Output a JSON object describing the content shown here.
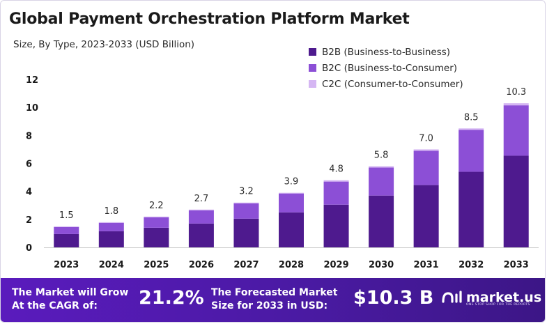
{
  "title": "Global Payment Orchestration Platform Market",
  "subtitle": "Size, By Type, 2023-2033 (USD Billion)",
  "colors": {
    "b2b": "#4e1a8e",
    "b2c": "#8c4fd6",
    "c2c": "#d5b6f3",
    "footer": "#4a1aa3"
  },
  "chart_data": {
    "type": "bar",
    "stacked": true,
    "title": "Global Payment Orchestration Platform Market",
    "subtitle": "Size, By Type, 2023-2033 (USD Billion)",
    "categories": [
      "2023",
      "2024",
      "2025",
      "2026",
      "2027",
      "2028",
      "2029",
      "2030",
      "2031",
      "2032",
      "2033"
    ],
    "series": [
      {
        "name": "B2B (Business-to-Business)",
        "values": [
          0.95,
          1.15,
          1.4,
          1.7,
          2.05,
          2.5,
          3.05,
          3.7,
          4.45,
          5.4,
          6.55
        ]
      },
      {
        "name": "B2C (Business-to-Consumer)",
        "values": [
          0.5,
          0.6,
          0.75,
          0.95,
          1.1,
          1.35,
          1.65,
          2.0,
          2.45,
          3.0,
          3.6
        ]
      },
      {
        "name": "C2C (Consumer-to-Consumer)",
        "values": [
          0.05,
          0.05,
          0.05,
          0.05,
          0.05,
          0.05,
          0.1,
          0.1,
          0.1,
          0.1,
          0.15
        ]
      }
    ],
    "totals": [
      "1.5",
      "1.8",
      "2.2",
      "2.7",
      "3.2",
      "3.9",
      "4.8",
      "5.8",
      "7.0",
      "8.5",
      "10.3"
    ],
    "yticks": [
      "0",
      "2",
      "4",
      "6",
      "8",
      "10",
      "12"
    ],
    "ylim": [
      0,
      12
    ],
    "xlabel": "",
    "ylabel": "",
    "legend_position": "top-right"
  },
  "footer": {
    "cagr_label_line1": "The Market will Grow",
    "cagr_label_line2": "At the CAGR of:",
    "cagr_value": "21.2%",
    "forecast_label_line1": "The Forecasted Market",
    "forecast_label_line2": "Size for 2033 in USD:",
    "forecast_value": "$10.3 B",
    "brand": "market.us",
    "brand_tagline": "ONE STOP SHOP FOR THE REPORTS"
  }
}
